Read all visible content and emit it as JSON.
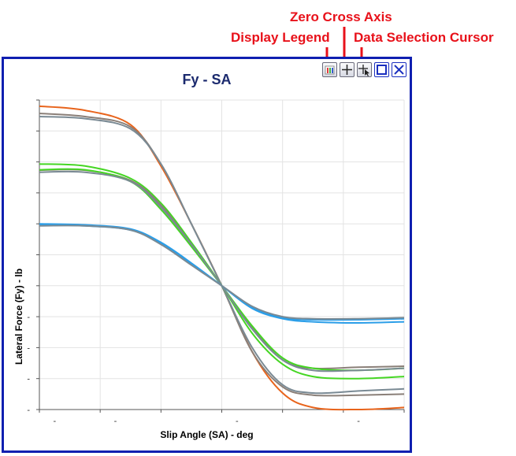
{
  "annotations": {
    "zero_cross_axis": "Zero Cross Axis",
    "display_legend": "Display Legend",
    "data_selection_cursor": "Data Selection Cursor",
    "color": "#e8111a"
  },
  "window": {
    "border_color": "#0f1fb0",
    "toolbar": [
      "legend-icon",
      "crosshair-icon",
      "cursor-crosshair-icon",
      "maximize-icon",
      "close-icon"
    ]
  },
  "chart_data": {
    "type": "line",
    "title": "Fy - SA",
    "xlabel": "Slip Angle (SA) - deg",
    "ylabel": "Lateral Force (Fy) - lb",
    "xlim": [
      -12,
      12
    ],
    "ylim": [
      -6,
      9
    ],
    "grid": true,
    "x_tick_labels": [
      "-",
      "-",
      "",
      "-",
      "",
      "-"
    ],
    "y_tick_labels": [
      "-",
      "-",
      "-",
      "-",
      "",
      "",
      "",
      "",
      "",
      ""
    ],
    "series": [
      {
        "color": "#e8641c",
        "values": [
          [
            -12,
            8.7
          ],
          [
            -9,
            8.5
          ],
          [
            -6,
            7.8
          ],
          [
            -4,
            5.8
          ],
          [
            -2,
            3.0
          ],
          [
            0,
            0
          ],
          [
            2,
            -3.2
          ],
          [
            4,
            -5.2
          ],
          [
            6,
            -5.9
          ],
          [
            9,
            -6.0
          ],
          [
            12,
            -5.9
          ]
        ]
      },
      {
        "color": "#8a7f78",
        "values": [
          [
            -12,
            8.35
          ],
          [
            -9,
            8.2
          ],
          [
            -6,
            7.7
          ],
          [
            -4,
            5.9
          ],
          [
            -2,
            3.0
          ],
          [
            0,
            0
          ],
          [
            2,
            -3.2
          ],
          [
            4,
            -4.9
          ],
          [
            6,
            -5.3
          ],
          [
            9,
            -5.3
          ],
          [
            12,
            -5.25
          ]
        ]
      },
      {
        "color": "#7a8a94",
        "values": [
          [
            -12,
            8.2
          ],
          [
            -9,
            8.1
          ],
          [
            -6,
            7.6
          ],
          [
            -4,
            5.9
          ],
          [
            -2,
            3.0
          ],
          [
            0,
            0
          ],
          [
            2,
            -3.0
          ],
          [
            4,
            -4.8
          ],
          [
            6,
            -5.2
          ],
          [
            9,
            -5.1
          ],
          [
            12,
            -5.0
          ]
        ]
      },
      {
        "color": "#45d623",
        "values": [
          [
            -12,
            5.9
          ],
          [
            -9,
            5.8
          ],
          [
            -6,
            5.2
          ],
          [
            -4,
            4.0
          ],
          [
            -2,
            2.1
          ],
          [
            0,
            0
          ],
          [
            2,
            -2.3
          ],
          [
            4,
            -3.8
          ],
          [
            6,
            -4.4
          ],
          [
            9,
            -4.5
          ],
          [
            12,
            -4.4
          ]
        ]
      },
      {
        "color": "#8a7f78",
        "values": [
          [
            -12,
            5.6
          ],
          [
            -9,
            5.6
          ],
          [
            -6,
            5.1
          ],
          [
            -4,
            3.9
          ],
          [
            -2,
            2.0
          ],
          [
            0,
            0
          ],
          [
            2,
            -2.0
          ],
          [
            4,
            -3.6
          ],
          [
            6,
            -4.0
          ],
          [
            9,
            -3.95
          ],
          [
            12,
            -3.9
          ]
        ]
      },
      {
        "color": "#45d623",
        "values": [
          [
            -12,
            5.62
          ],
          [
            -9,
            5.62
          ],
          [
            -6,
            5.05
          ],
          [
            -4,
            3.7
          ],
          [
            -2,
            1.9
          ],
          [
            0,
            0
          ],
          [
            2,
            -1.95
          ],
          [
            4,
            -3.5
          ],
          [
            6,
            -4.0
          ],
          [
            9,
            -4.1
          ],
          [
            12,
            -4.0
          ]
        ]
      },
      {
        "color": "#7a8a94",
        "values": [
          [
            -12,
            5.5
          ],
          [
            -9,
            5.5
          ],
          [
            -6,
            5.05
          ],
          [
            -4,
            3.8
          ],
          [
            -2,
            2.0
          ],
          [
            0,
            0
          ],
          [
            2,
            -2.1
          ],
          [
            4,
            -3.6
          ],
          [
            6,
            -4.1
          ],
          [
            9,
            -4.1
          ],
          [
            12,
            -4.0
          ]
        ]
      },
      {
        "color": "#2b9ee8",
        "values": [
          [
            -12,
            3.0
          ],
          [
            -9,
            2.95
          ],
          [
            -6,
            2.75
          ],
          [
            -4,
            2.1
          ],
          [
            -2,
            1.1
          ],
          [
            0,
            0
          ],
          [
            2,
            -1.1
          ],
          [
            4,
            -1.6
          ],
          [
            6,
            -1.75
          ],
          [
            9,
            -1.8
          ],
          [
            12,
            -1.75
          ]
        ]
      },
      {
        "color": "#2b9ee8",
        "values": [
          [
            -12,
            2.95
          ],
          [
            -9,
            2.9
          ],
          [
            -6,
            2.7
          ],
          [
            -4,
            2.05
          ],
          [
            -2,
            1.05
          ],
          [
            0,
            0
          ],
          [
            2,
            -1.05
          ],
          [
            4,
            -1.55
          ],
          [
            6,
            -1.65
          ],
          [
            9,
            -1.65
          ],
          [
            12,
            -1.6
          ]
        ]
      },
      {
        "color": "#7a8a94",
        "values": [
          [
            -12,
            2.9
          ],
          [
            -9,
            2.9
          ],
          [
            -6,
            2.7
          ],
          [
            -4,
            2.0
          ],
          [
            -2,
            1.0
          ],
          [
            0,
            0
          ],
          [
            2,
            -1.0
          ],
          [
            4,
            -1.5
          ],
          [
            6,
            -1.6
          ],
          [
            9,
            -1.6
          ],
          [
            12,
            -1.55
          ]
        ]
      }
    ]
  }
}
